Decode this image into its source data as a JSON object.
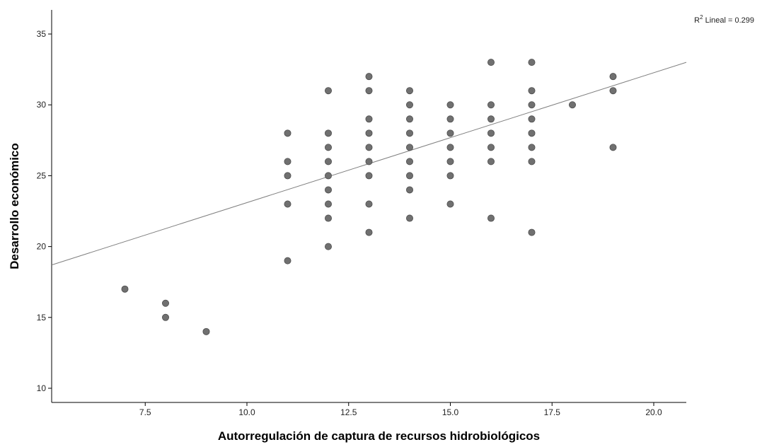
{
  "chart_data": {
    "type": "scatter",
    "title": "",
    "xlabel": "Autorregulación de captura de recursos hidrobiológicos",
    "ylabel": "Desarrollo económico",
    "xlim": [
      5.2,
      20.8
    ],
    "ylim": [
      9,
      36.7
    ],
    "xticks": [
      7.5,
      10.0,
      12.5,
      15.0,
      17.5,
      20.0
    ],
    "xtick_labels": [
      "7.5",
      "10.0",
      "12.5",
      "15.0",
      "17.5",
      "20.0"
    ],
    "yticks": [
      10,
      15,
      20,
      25,
      30,
      35
    ],
    "ytick_labels": [
      "10",
      "15",
      "20",
      "25",
      "30",
      "35"
    ],
    "grid": false,
    "marker_color": "#707070",
    "line_color": "#808080",
    "fit_line": {
      "x1": 5.2,
      "y1": 18.7,
      "x2": 20.8,
      "y2": 33.0
    },
    "annotation": {
      "prefix": "R",
      "sup": "2",
      "text": " Lineal = 0.299"
    },
    "points": [
      [
        7,
        17
      ],
      [
        8,
        16
      ],
      [
        8,
        15
      ],
      [
        9,
        14
      ],
      [
        11,
        28
      ],
      [
        11,
        26
      ],
      [
        11,
        25
      ],
      [
        11,
        23
      ],
      [
        11,
        19
      ],
      [
        12,
        31
      ],
      [
        12,
        28
      ],
      [
        12,
        27
      ],
      [
        12,
        26
      ],
      [
        12,
        25
      ],
      [
        12,
        24
      ],
      [
        12,
        23
      ],
      [
        12,
        22
      ],
      [
        12,
        20
      ],
      [
        13,
        32
      ],
      [
        13,
        31
      ],
      [
        13,
        29
      ],
      [
        13,
        28
      ],
      [
        13,
        27
      ],
      [
        13,
        26
      ],
      [
        13,
        25
      ],
      [
        13,
        23
      ],
      [
        13,
        21
      ],
      [
        14,
        31
      ],
      [
        14,
        30
      ],
      [
        14,
        29
      ],
      [
        14,
        28
      ],
      [
        14,
        27
      ],
      [
        14,
        26
      ],
      [
        14,
        25
      ],
      [
        14,
        24
      ],
      [
        14,
        22
      ],
      [
        15,
        30
      ],
      [
        15,
        29
      ],
      [
        15,
        28
      ],
      [
        15,
        27
      ],
      [
        15,
        26
      ],
      [
        15,
        25
      ],
      [
        15,
        23
      ],
      [
        16,
        33
      ],
      [
        16,
        30
      ],
      [
        16,
        29
      ],
      [
        16,
        28
      ],
      [
        16,
        27
      ],
      [
        16,
        26
      ],
      [
        16,
        22
      ],
      [
        17,
        33
      ],
      [
        17,
        31
      ],
      [
        17,
        30
      ],
      [
        17,
        29
      ],
      [
        17,
        28
      ],
      [
        17,
        27
      ],
      [
        17,
        26
      ],
      [
        17,
        21
      ],
      [
        18,
        30
      ],
      [
        19,
        32
      ],
      [
        19,
        31
      ],
      [
        19,
        27
      ]
    ]
  }
}
